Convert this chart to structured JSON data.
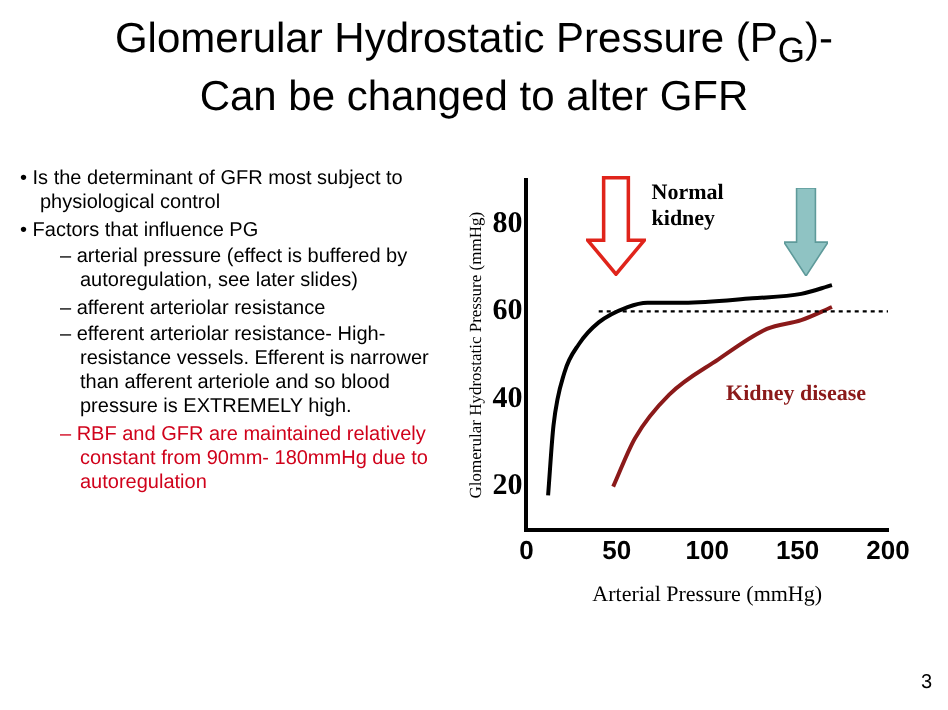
{
  "chart_data": {
    "type": "line",
    "title": "Glomerular Hydrostatic Pressure (P$_{G}$)-Can be changed to alter GFR",
    "xlabel": "Arterial Pressure (mmHg)",
    "ylabel": "Glomerular Hydrostatic Pressure (mmHg)",
    "xlim": [
      0,
      200
    ],
    "xticks": [
      0,
      50,
      100,
      150,
      200
    ],
    "ylim": [
      10,
      90
    ],
    "yticks": [
      20,
      40,
      60,
      80
    ],
    "series": [
      {
        "name": "Normal kidney",
        "color": "#000000",
        "x": [
          12,
          15,
          21,
          29,
          40,
          56,
          67,
          87,
          125,
          152,
          169
        ],
        "values": [
          18,
          34,
          46,
          52.5,
          57.5,
          61,
          62,
          62,
          63,
          64,
          66
        ]
      },
      {
        "name": "Kidney disease",
        "color": "#8b1a1a",
        "x": [
          48,
          60,
          79,
          106,
          133,
          152,
          169
        ],
        "values": [
          20,
          31,
          41,
          49,
          56,
          58,
          61
        ]
      }
    ],
    "ref_lines": [
      {
        "axis": "y",
        "value": 60,
        "color": "#000000",
        "line_style": "dotted"
      }
    ],
    "grid": false,
    "legend": false,
    "marker": "none",
    "line_style": "solid",
    "annotations": [
      "• Is the determinant of GFR most subject to physiological control",
      "• Factors that influence PG",
      "– arterial pressure (effect is buffered by autoregulation, see later slides)",
      "– afferent arteriolar resistance",
      "– efferent arteriolar resistance- High-resistance vessels.  Efferent is narrower than afferent arteriole and so blood pressure is EXTREMELY high.",
      "– RBF and GFR are maintained relatively constant from 90mm- 180mmHg due to autoregulation",
      "3"
    ]
  }
}
